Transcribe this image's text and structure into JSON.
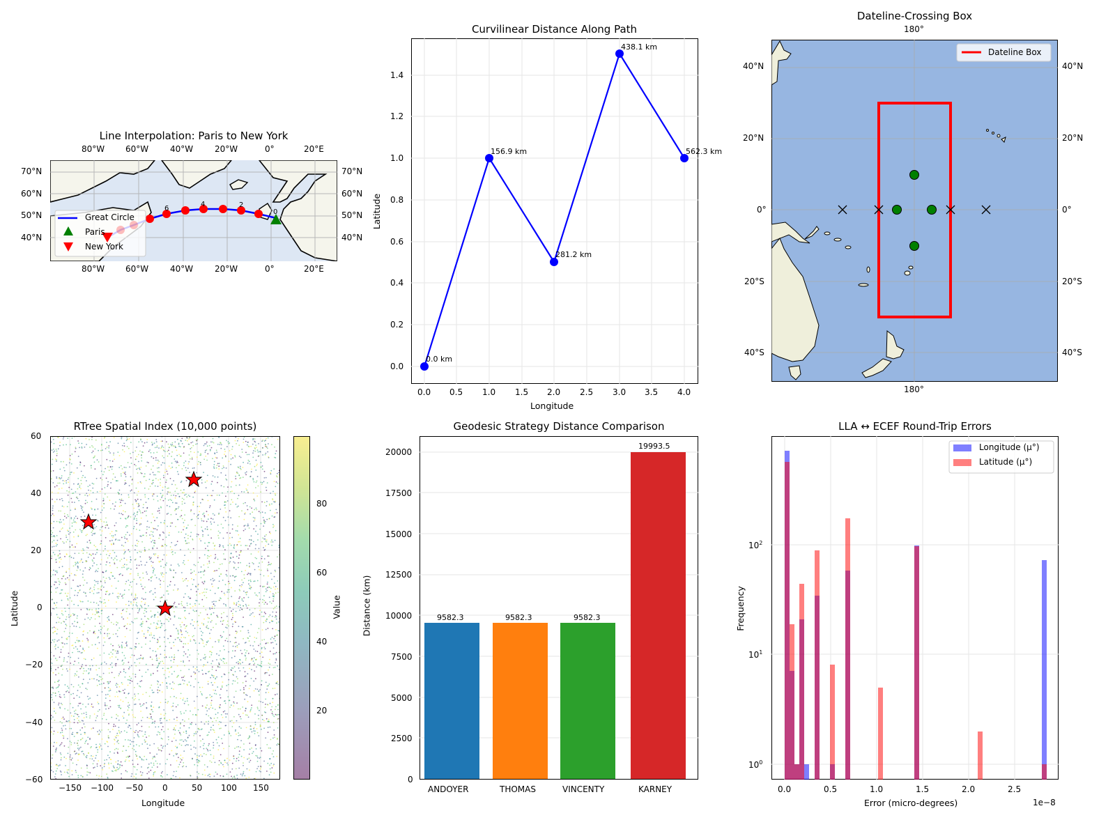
{
  "chart_data": [
    {
      "id": "map1",
      "type": "line",
      "title": "Line Interpolation: Paris to New York",
      "projection": "PlateCarree map",
      "xlim": [
        -100,
        30
      ],
      "ylim": [
        30,
        76
      ],
      "x_ticks": [
        "80°W",
        "60°W",
        "40°W",
        "20°W",
        "0°",
        "20°E"
      ],
      "y_ticks": [
        "70°N",
        "60°N",
        "50°N",
        "40°N"
      ],
      "grid": true,
      "legend": [
        "Great Circle",
        "Paris",
        "New York"
      ],
      "series": [
        {
          "name": "Great Circle",
          "color": "#0000ff",
          "points": [
            [
              2.35,
              48.86
            ],
            [
              -5,
              50.2
            ],
            [
              -13,
              51.3
            ],
            [
              -21,
              51.9
            ],
            [
              -30,
              51.9
            ],
            [
              -38,
              51.4
            ],
            [
              -47,
              50.1
            ],
            [
              -55,
              48.2
            ],
            [
              -62,
              45.9
            ],
            [
              -68,
              43.5
            ],
            [
              -74,
              40.7
            ]
          ]
        },
        {
          "name": "Interpolated points",
          "color": "#ff0000",
          "points": [
            [
              -5,
              50.2
            ],
            [
              -13,
              51.3
            ],
            [
              -21,
              51.9
            ],
            [
              -30,
              51.9
            ],
            [
              -38,
              51.4
            ],
            [
              -47,
              50.1
            ],
            [
              -55,
              48.2
            ],
            [
              -62,
              45.9
            ],
            [
              -68,
              43.5
            ]
          ],
          "labels": [
            {
              "text": "0",
              "x": 2.35,
              "y": 48.86
            },
            {
              "text": "2",
              "x": -13,
              "y": 51.3
            },
            {
              "text": "4",
              "x": -30,
              "y": 51.9
            },
            {
              "text": "6",
              "x": -47,
              "y": 50.1
            },
            {
              "text": "10",
              "x": -74,
              "y": 40.7
            }
          ]
        },
        {
          "name": "Paris",
          "marker": "triangle-up",
          "color": "#008000",
          "points": [
            [
              2.35,
              48.86
            ]
          ]
        },
        {
          "name": "New York",
          "marker": "triangle-down",
          "color": "#ff0000",
          "points": [
            [
              -74.0,
              40.7
            ]
          ]
        }
      ]
    },
    {
      "id": "curvilinear",
      "type": "line",
      "title": "Curvilinear Distance Along Path",
      "xlabel": "Longitude",
      "ylabel": "Latitude",
      "x": [
        0.0,
        1.0,
        2.0,
        3.0,
        4.0
      ],
      "y": [
        0.0,
        1.0,
        0.5,
        1.5,
        1.0
      ],
      "annotations": [
        "0.0 km",
        "156.9 km",
        "281.2 km",
        "438.1 km",
        "562.3 km"
      ],
      "xlim": [
        -0.2,
        4.2
      ],
      "ylim": [
        -0.075,
        1.575
      ],
      "x_ticks": [
        "0.0",
        "0.5",
        "1.0",
        "1.5",
        "2.0",
        "2.5",
        "3.0",
        "3.5",
        "4.0"
      ],
      "y_ticks": [
        "0.0",
        "0.2",
        "0.4",
        "0.6",
        "0.8",
        "1.0",
        "1.2",
        "1.4"
      ],
      "grid": true,
      "color": "#0000ff"
    },
    {
      "id": "dateline",
      "type": "scatter",
      "title": "Dateline-Crossing Box",
      "xlim": [
        140,
        220
      ],
      "ylim": [
        -48,
        48
      ],
      "x_ticks": [
        "180°"
      ],
      "y_ticks": [
        "40°N",
        "20°N",
        "0°",
        "20°S",
        "40°S"
      ],
      "legend": [
        "Dateline Box"
      ],
      "box": {
        "lon_min": 170,
        "lon_max": 190,
        "lat_min": -30,
        "lat_max": 30,
        "color": "#ff0000"
      },
      "inside_points": [
        [
          180,
          10
        ],
        [
          175,
          0
        ],
        [
          185,
          0
        ],
        [
          180,
          -10
        ]
      ],
      "outside_points": [
        [
          160,
          0
        ],
        [
          170,
          0
        ],
        [
          190,
          0
        ],
        [
          200,
          0
        ]
      ],
      "ocean_color": "#97b6e1",
      "land_color": "#efefdb"
    },
    {
      "id": "rtree",
      "type": "scatter",
      "title": "RTree Spatial Index (10,000 points)",
      "xlabel": "Longitude",
      "ylabel": "Latitude",
      "xlim": [
        -180,
        180
      ],
      "ylim": [
        -60,
        60
      ],
      "x_ticks": [
        "−150",
        "−100",
        "−50",
        "0",
        "50",
        "100",
        "150"
      ],
      "y_ticks": [
        "60",
        "40",
        "20",
        "0",
        "−20",
        "−40",
        "−60"
      ],
      "n_points": 10000,
      "colorbar": {
        "label": "Value",
        "ticks": [
          "20",
          "40",
          "60",
          "80"
        ],
        "range": [
          0,
          100
        ],
        "cmap": "viridis",
        "alpha": 0.5
      },
      "query_points": [
        [
          -120,
          30
        ],
        [
          45,
          45
        ],
        [
          0,
          0
        ]
      ],
      "grid": true
    },
    {
      "id": "geodesic",
      "type": "bar",
      "title": "Geodesic Strategy Distance Comparison",
      "xlabel": "",
      "ylabel": "Distance (km)",
      "categories": [
        "ANDOYER",
        "THOMAS",
        "VINCENTY",
        "KARNEY"
      ],
      "values": [
        9582.3,
        9582.3,
        9582.3,
        19993.5
      ],
      "labels": [
        "9582.3",
        "9582.3",
        "9582.3",
        "19993.5"
      ],
      "colors": [
        "#1f77b4",
        "#ff7f0e",
        "#2ca02c",
        "#d62728"
      ],
      "ylim": [
        0,
        21000
      ],
      "y_ticks": [
        "0",
        "2500",
        "5000",
        "7500",
        "10000",
        "12500",
        "15000",
        "17500",
        "20000"
      ],
      "grid": "y"
    },
    {
      "id": "ecef",
      "type": "bar",
      "subtype": "histogram",
      "title": "LLA ↔ ECEF Round-Trip Errors",
      "xlabel": "Error (micro-degrees)",
      "ylabel": "Frequency",
      "x_offset_label": "1e−8",
      "yscale": "log",
      "ylim": [
        0.75,
        900
      ],
      "xlim": [
        -0.15,
        2.98
      ],
      "x_ticks": [
        "0.0",
        "0.5",
        "1.0",
        "1.5",
        "2.0",
        "2.5"
      ],
      "y_ticks": [
        "10^0",
        "10^1",
        "10^2"
      ],
      "legend": [
        "Longitude (µ°)",
        "Latitude (µ°)"
      ],
      "series": [
        {
          "name": "Longitude (µ°)",
          "color": "#0000ff",
          "alpha": 0.5,
          "bins": [
            [
              0.0,
              700
            ],
            [
              0.056,
              7
            ],
            [
              0.111,
              1
            ],
            [
              0.167,
              21
            ],
            [
              0.222,
              1
            ],
            [
              0.333,
              34
            ],
            [
              0.5,
              1
            ],
            [
              0.667,
              58
            ],
            [
              1.411,
              97
            ],
            [
              2.789,
              72
            ]
          ]
        },
        {
          "name": "Latitude (µ°)",
          "color": "#ff0000",
          "alpha": 0.5,
          "bins": [
            [
              0.0,
              560
            ],
            [
              0.056,
              19
            ],
            [
              0.111,
              1
            ],
            [
              0.167,
              44
            ],
            [
              0.333,
              90
            ],
            [
              0.5,
              8
            ],
            [
              0.667,
              170
            ],
            [
              1.022,
              5
            ],
            [
              1.411,
              95
            ],
            [
              2.111,
              2
            ],
            [
              2.789,
              1
            ]
          ]
        }
      ],
      "grid": true
    }
  ],
  "map1": {
    "title": "Line Interpolation: Paris to New York",
    "top_ticks": [
      "80°W",
      "60°W",
      "40°W",
      "20°W",
      "0°",
      "20°E"
    ],
    "bottom_ticks": [
      "80°W",
      "60°W",
      "40°W",
      "20°W",
      "0°",
      "20°E"
    ],
    "left_ticks": [
      "70°N",
      "60°N",
      "50°N",
      "40°N"
    ],
    "right_ticks": [
      "70°N",
      "60°N",
      "50°N",
      "40°N"
    ],
    "point_labels": [
      "0",
      "2",
      "4",
      "6",
      "10"
    ],
    "legend": {
      "great_circle": "Great Circle",
      "paris": "Paris",
      "new_york": "New York"
    }
  },
  "curv": {
    "title": "Curvilinear Distance Along Path",
    "xlabel": "Longitude",
    "ylabel": "Latitude",
    "x_ticks": [
      "0.0",
      "0.5",
      "1.0",
      "1.5",
      "2.0",
      "2.5",
      "3.0",
      "3.5",
      "4.0"
    ],
    "y_ticks": [
      "0.0",
      "0.2",
      "0.4",
      "0.6",
      "0.8",
      "1.0",
      "1.2",
      "1.4"
    ],
    "annotations": [
      "0.0 km",
      "156.9 km",
      "281.2 km",
      "438.1 km",
      "562.3 km"
    ]
  },
  "dateline": {
    "title": "Dateline-Crossing Box",
    "top_tick": "180°",
    "bottom_tick": "180°",
    "left_ticks": [
      "40°N",
      "20°N",
      "0°",
      "20°S",
      "40°S"
    ],
    "right_ticks": [
      "40°N",
      "20°N",
      "0°",
      "20°S",
      "40°S"
    ],
    "legend": "Dateline Box"
  },
  "rtree": {
    "title": "RTree Spatial Index (10,000 points)",
    "xlabel": "Longitude",
    "ylabel": "Latitude",
    "x_ticks": [
      "−150",
      "−100",
      "−50",
      "0",
      "50",
      "100",
      "150"
    ],
    "y_ticks": [
      "60",
      "40",
      "20",
      "0",
      "−20",
      "−40",
      "−60"
    ],
    "colorbar_label": "Value",
    "colorbar_ticks": [
      "20",
      "40",
      "60",
      "80"
    ]
  },
  "geo": {
    "title": "Geodesic Strategy Distance Comparison",
    "ylabel": "Distance (km)",
    "y_ticks": [
      "0",
      "2500",
      "5000",
      "7500",
      "10000",
      "12500",
      "15000",
      "17500",
      "20000"
    ],
    "categories": [
      "ANDOYER",
      "THOMAS",
      "VINCENTY",
      "KARNEY"
    ],
    "labels": [
      "9582.3",
      "9582.3",
      "9582.3",
      "19993.5"
    ]
  },
  "ecef": {
    "title": "LLA ↔ ECEF Round-Trip Errors",
    "xlabel": "Error (micro-degrees)",
    "ylabel": "Frequency",
    "offset": "1e−8",
    "x_ticks": [
      "0.0",
      "0.5",
      "1.0",
      "1.5",
      "2.0",
      "2.5"
    ],
    "y_ticks": [
      "10",
      "10",
      "10"
    ],
    "y_exps": [
      "0",
      "1",
      "2"
    ],
    "legend_lon": "Longitude (µ°)",
    "legend_lat": "Latitude (µ°)"
  }
}
